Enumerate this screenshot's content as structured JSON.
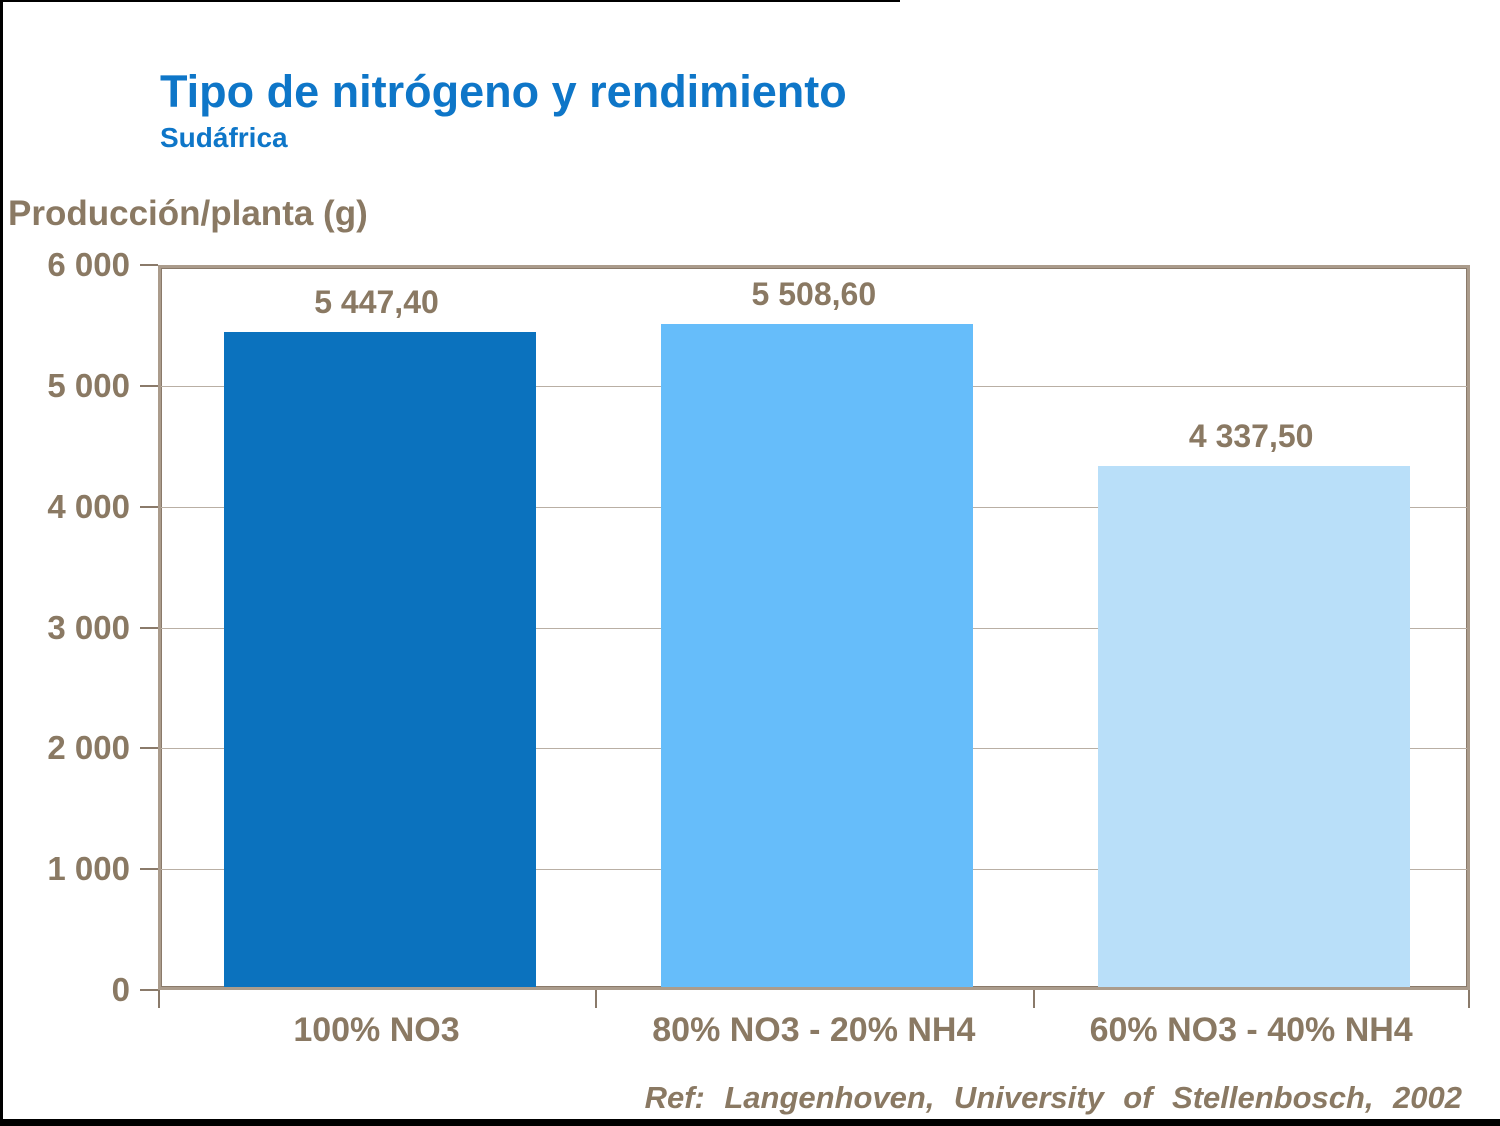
{
  "header": {
    "title": "Tipo de nitrógeno y rendimiento",
    "subtitle": "Sudáfrica"
  },
  "footer": {
    "ref": "Ref: Langenhoven, University of Stellenbosch, 2002"
  },
  "colors": {
    "title_blue": "#0e76c8",
    "text_brown": "#8a7963",
    "gridline": "#b9afa4",
    "plot_border_outer": "#ab9c8c",
    "plot_border_inner": "#8a7a6a",
    "tick": "#8a7a6a",
    "bar_colors": [
      "#0b72be",
      "#66bdfa",
      "#b9dff9"
    ]
  },
  "chart_data": {
    "type": "bar",
    "title": "Tipo de nitrógeno y rendimiento",
    "subtitle": "Sudáfrica",
    "ylabel": "Producción/planta (g)",
    "xlabel": "",
    "categories": [
      "100% NO3",
      "80% NO3 - 20% NH4",
      "60% NO3 - 40% NH4"
    ],
    "values": [
      5447.4,
      5508.6,
      4337.5
    ],
    "values_formatted": [
      "5 447,40",
      "5 508,60",
      "4 337,50"
    ],
    "ylim": [
      0,
      6000
    ],
    "ytick_step": 1000,
    "yticks_formatted": [
      "0",
      "1 000",
      "2 000",
      "3 000",
      "4 000",
      "5 000",
      "6 000"
    ],
    "grid": true,
    "legend_position": "none"
  }
}
